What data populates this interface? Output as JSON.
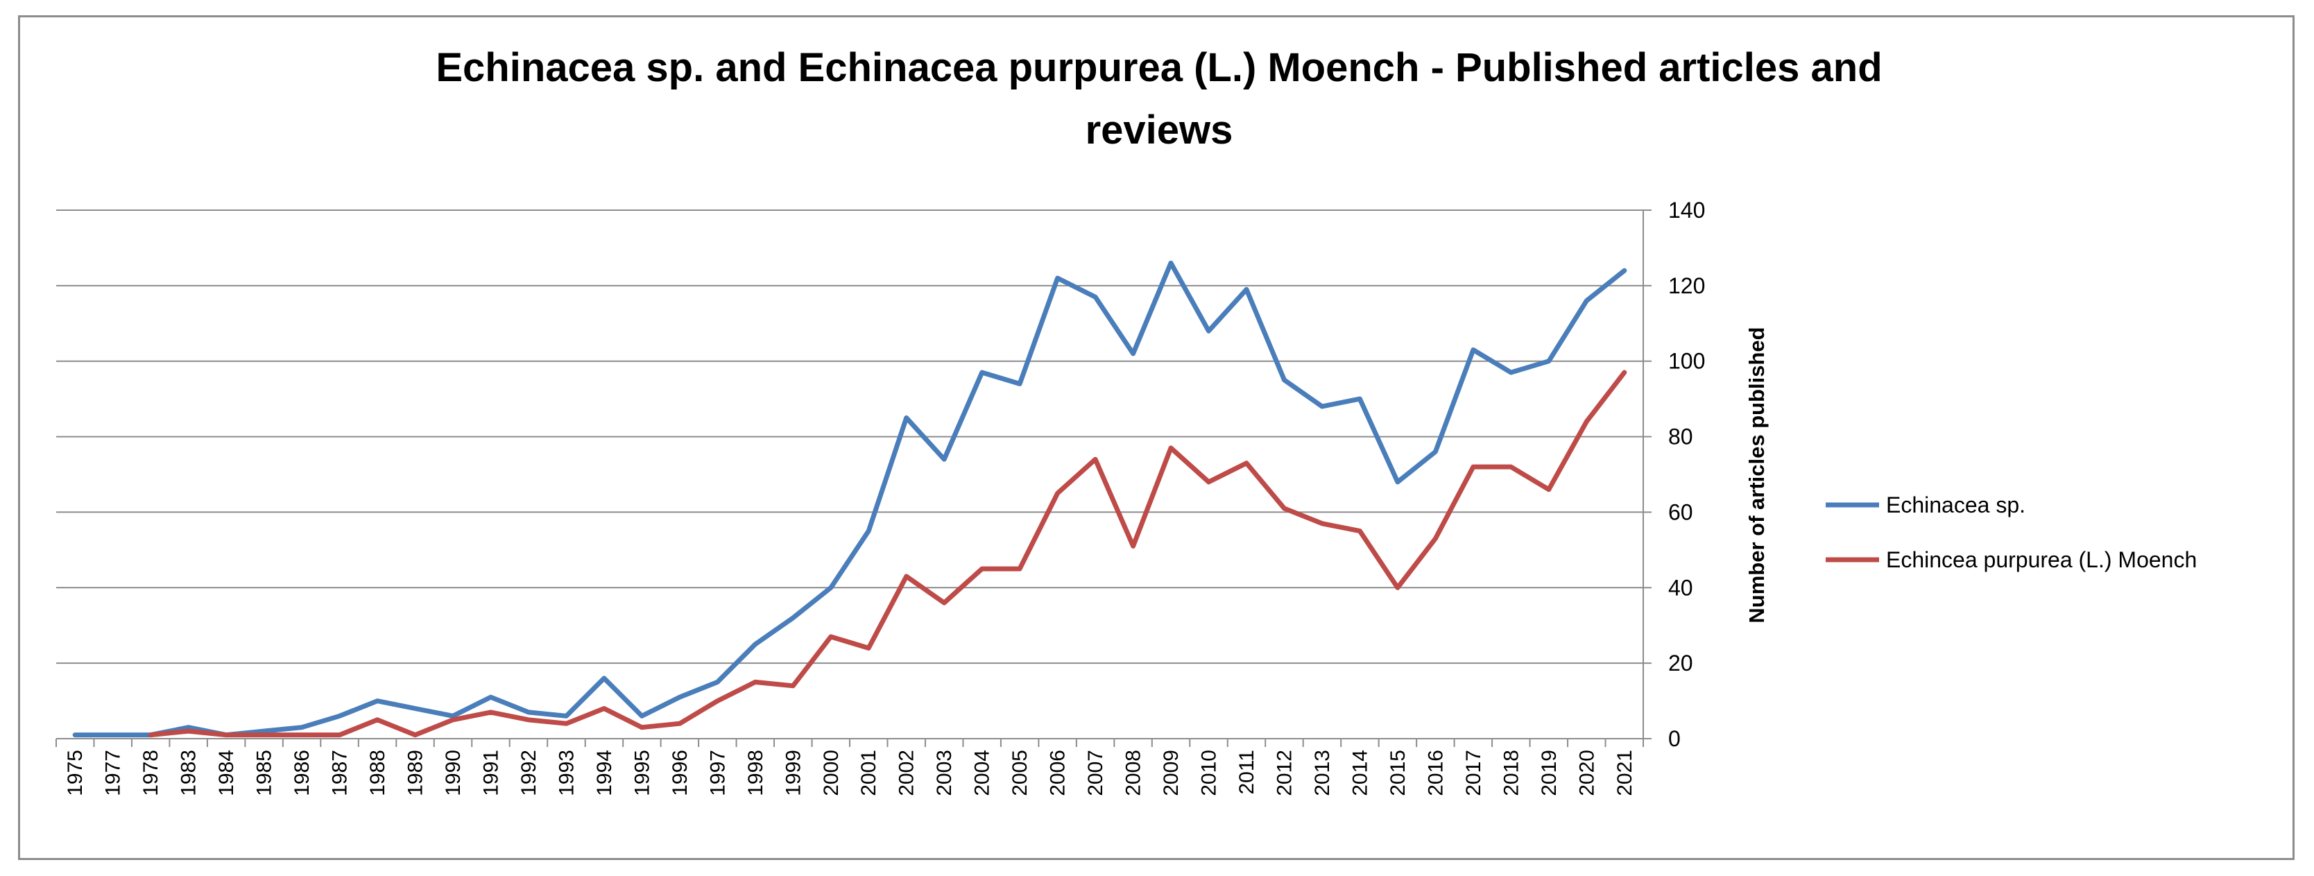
{
  "chart_data": {
    "type": "line",
    "title_line1": "Echinacea sp. and Echinacea purpurea (L.) Moench - Published articles and",
    "title_line2": "reviews",
    "xlabel": "",
    "ylabel": "Number of articles published",
    "ylim": [
      0,
      140
    ],
    "yticks": [
      0,
      20,
      40,
      60,
      80,
      100,
      120,
      140
    ],
    "y_axis_side": "right",
    "grid": true,
    "legend_position": "right",
    "categories": [
      "1975",
      "1977",
      "1978",
      "1983",
      "1984",
      "1985",
      "1986",
      "1987",
      "1988",
      "1989",
      "1990",
      "1991",
      "1992",
      "1993",
      "1994",
      "1995",
      "1996",
      "1997",
      "1998",
      "1999",
      "2000",
      "2001",
      "2002",
      "2003",
      "2004",
      "2005",
      "2006",
      "2007",
      "2008",
      "2009",
      "2010",
      "2011",
      "2012",
      "2013",
      "2014",
      "2015",
      "2016",
      "2017",
      "2018",
      "2019",
      "2020",
      "2021"
    ],
    "series": [
      {
        "name": "Echinacea sp.",
        "color": "#4a7ebb",
        "values": [
          1,
          1,
          1,
          3,
          1,
          2,
          3,
          6,
          10,
          8,
          6,
          11,
          7,
          6,
          16,
          6,
          11,
          15,
          25,
          32,
          40,
          55,
          85,
          74,
          97,
          94,
          122,
          117,
          102,
          126,
          108,
          119,
          95,
          88,
          90,
          68,
          76,
          103,
          97,
          100,
          116,
          124
        ]
      },
      {
        "name": "Echincea purpurea (L.) Moench",
        "color": "#be4b48",
        "values": [
          null,
          null,
          1,
          2,
          1,
          1,
          1,
          1,
          5,
          1,
          5,
          7,
          5,
          4,
          8,
          3,
          4,
          10,
          15,
          14,
          27,
          24,
          43,
          36,
          45,
          45,
          65,
          74,
          51,
          77,
          68,
          73,
          61,
          57,
          55,
          40,
          53,
          72,
          72,
          66,
          84,
          97
        ]
      }
    ]
  }
}
